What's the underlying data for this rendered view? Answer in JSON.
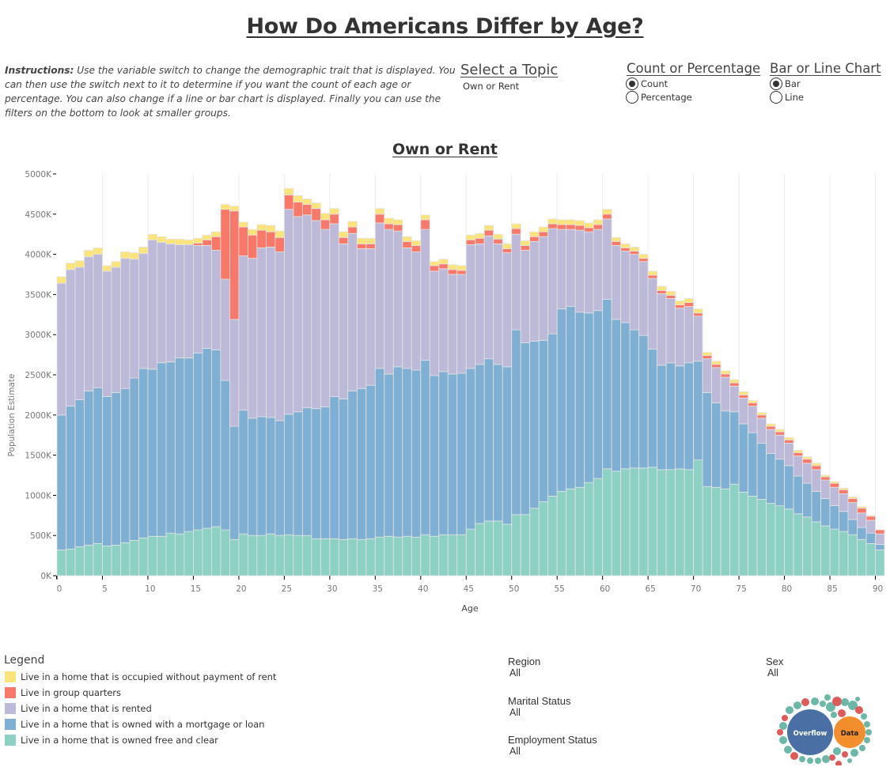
{
  "header": {
    "title": "How Do Americans Differ by Age?",
    "instructions_label": "Instructions:",
    "instructions_text": " Use the variable switch to change the demographic trait that is displayed. You can then use the switch next to it to determine if you want the count of each age or percentage. You can also change if  a line or bar chart is displayed. Finally you can use the filters on the bottom to look at smaller groups."
  },
  "controls": {
    "topic": {
      "title": "Select a Topic",
      "value": "Own or Rent"
    },
    "count_or_percentage": {
      "title": "Count or Percentage",
      "options": [
        {
          "label": "Count",
          "selected": true
        },
        {
          "label": "Percentage",
          "selected": false
        }
      ]
    },
    "bar_or_line": {
      "title": "Bar or Line Chart",
      "options": [
        {
          "label": "Bar",
          "selected": true
        },
        {
          "label": "Line",
          "selected": false
        }
      ]
    }
  },
  "legend": {
    "title": "Legend",
    "items": [
      {
        "label": "Live in a home that is occupied without payment of rent",
        "color": "#FBE47A"
      },
      {
        "label": "Live in group quarters",
        "color": "#F8796A"
      },
      {
        "label": "Live in a home that is rented",
        "color": "#BDB9D9"
      },
      {
        "label": "Live in a home that is owned with a mortgage or loan",
        "color": "#7FAFD2"
      },
      {
        "label": "Live in a home that is owned free and clear",
        "color": "#8DD1C4"
      }
    ]
  },
  "filters": [
    {
      "label": "Region",
      "value": "All"
    },
    {
      "label": "Marital Status",
      "value": "All"
    },
    {
      "label": "Employment Status",
      "value": "All"
    },
    {
      "label": "Sex",
      "value": "All"
    }
  ],
  "logo": {
    "word1": "Overflow",
    "word2": "Data"
  },
  "chart_data": {
    "type": "bar",
    "stacked": true,
    "title": "Own or Rent",
    "xlabel": "Age",
    "ylabel": "Population Estimate",
    "ylim": [
      0,
      5000
    ],
    "y_unit": "K",
    "yticks": [
      "0K",
      "500K",
      "1000K",
      "1500K",
      "2000K",
      "2500K",
      "3000K",
      "3500K",
      "4000K",
      "4500K",
      "5000K"
    ],
    "ytick_values": [
      0,
      500,
      1000,
      1500,
      2000,
      2500,
      3000,
      3500,
      4000,
      4500,
      5000
    ],
    "xticks": [
      0,
      5,
      10,
      15,
      20,
      25,
      30,
      35,
      40,
      45,
      50,
      55,
      60,
      65,
      70,
      75,
      80,
      85,
      90
    ],
    "grid": "vertical at x ticks",
    "legend_position": "bottom-left",
    "categories": [
      0,
      1,
      2,
      3,
      4,
      5,
      6,
      7,
      8,
      9,
      10,
      11,
      12,
      13,
      14,
      15,
      16,
      17,
      18,
      19,
      20,
      21,
      22,
      23,
      24,
      25,
      26,
      27,
      28,
      29,
      30,
      31,
      32,
      33,
      34,
      35,
      36,
      37,
      38,
      39,
      40,
      41,
      42,
      43,
      44,
      45,
      46,
      47,
      48,
      49,
      50,
      51,
      52,
      53,
      54,
      55,
      56,
      57,
      58,
      59,
      60,
      61,
      62,
      63,
      64,
      65,
      66,
      67,
      68,
      69,
      70,
      71,
      72,
      73,
      74,
      75,
      76,
      77,
      78,
      79,
      80,
      81,
      82,
      83,
      84,
      85,
      86,
      87,
      88,
      89,
      90
    ],
    "series": [
      {
        "name": "Live in a home that is owned free and clear",
        "color": "#8DD1C4",
        "values": [
          320,
          330,
          360,
          380,
          400,
          370,
          380,
          410,
          440,
          470,
          490,
          490,
          530,
          520,
          550,
          570,
          590,
          610,
          570,
          450,
          520,
          500,
          500,
          520,
          500,
          510,
          500,
          500,
          460,
          460,
          460,
          450,
          460,
          450,
          460,
          480,
          490,
          480,
          490,
          480,
          510,
          490,
          510,
          510,
          510,
          580,
          650,
          680,
          680,
          640,
          760,
          760,
          840,
          920,
          990,
          1050,
          1080,
          1100,
          1160,
          1210,
          1330,
          1300,
          1330,
          1340,
          1340,
          1350,
          1320,
          1320,
          1330,
          1320,
          1440,
          1110,
          1100,
          1080,
          1140,
          1040,
          990,
          950,
          900,
          870,
          830,
          770,
          730,
          670,
          620,
          580,
          550,
          510,
          450,
          400,
          320
        ]
      },
      {
        "name": "Live in a home that is owned with a mortgage or loan",
        "color": "#7FAFD2",
        "values": [
          1680,
          1780,
          1830,
          1920,
          1940,
          1860,
          1900,
          1920,
          2020,
          2110,
          2080,
          2160,
          2130,
          2190,
          2160,
          2200,
          2240,
          2200,
          1860,
          1410,
          1540,
          1460,
          1480,
          1450,
          1430,
          1500,
          1540,
          1590,
          1620,
          1640,
          1770,
          1750,
          1840,
          1880,
          1910,
          2100,
          2020,
          2120,
          2090,
          2080,
          2170,
          2000,
          2030,
          2000,
          2010,
          2000,
          1980,
          2020,
          1950,
          1960,
          2300,
          2140,
          2080,
          2010,
          2020,
          2270,
          2270,
          2180,
          2110,
          2090,
          2110,
          1890,
          1820,
          1720,
          1650,
          1470,
          1300,
          1330,
          1280,
          1330,
          1230,
          1170,
          1050,
          970,
          900,
          850,
          790,
          700,
          620,
          580,
          540,
          470,
          420,
          380,
          340,
          290,
          250,
          190,
          150,
          130,
          70
        ]
      },
      {
        "name": "Live in a home that is rented",
        "color": "#BDB9D9",
        "values": [
          1640,
          1700,
          1650,
          1670,
          1660,
          1560,
          1560,
          1620,
          1480,
          1430,
          1610,
          1500,
          1470,
          1410,
          1410,
          1340,
          1280,
          1240,
          1260,
          1330,
          1920,
          1990,
          2100,
          2120,
          2100,
          2550,
          2430,
          2400,
          2340,
          2210,
          2150,
          1930,
          1960,
          1740,
          1700,
          1810,
          1800,
          1690,
          1500,
          1470,
          1630,
          1300,
          1280,
          1240,
          1230,
          1540,
          1500,
          1530,
          1500,
          1420,
          1190,
          1150,
          1240,
          1290,
          1310,
          990,
          960,
          1020,
          1010,
          1010,
          1000,
          920,
          890,
          940,
          920,
          880,
          890,
          800,
          720,
          700,
          560,
          420,
          440,
          420,
          320,
          320,
          330,
          310,
          300,
          300,
          280,
          250,
          250,
          270,
          230,
          230,
          220,
          210,
          180,
          160,
          130
        ]
      },
      {
        "name": "Live in group quarters",
        "color": "#F8796A",
        "values": [
          0,
          0,
          0,
          0,
          0,
          0,
          0,
          0,
          0,
          0,
          0,
          0,
          0,
          0,
          0,
          30,
          70,
          170,
          870,
          1350,
          360,
          290,
          220,
          190,
          180,
          180,
          180,
          130,
          150,
          120,
          120,
          80,
          80,
          60,
          60,
          110,
          70,
          80,
          80,
          80,
          120,
          70,
          60,
          60,
          50,
          60,
          70,
          70,
          60,
          50,
          70,
          60,
          60,
          60,
          60,
          60,
          60,
          60,
          50,
          60,
          60,
          50,
          40,
          40,
          40,
          40,
          40,
          40,
          40,
          50,
          40,
          40,
          40,
          40,
          40,
          40,
          40,
          40,
          40,
          40,
          40,
          40,
          50,
          50,
          40,
          50,
          50,
          50,
          60,
          50,
          50
        ]
      },
      {
        "name": "Live in a home that is occupied without payment of rent",
        "color": "#FBE47A",
        "values": [
          80,
          80,
          80,
          80,
          80,
          70,
          70,
          80,
          80,
          80,
          70,
          70,
          60,
          70,
          60,
          60,
          60,
          60,
          60,
          60,
          60,
          70,
          70,
          80,
          80,
          80,
          80,
          70,
          70,
          80,
          70,
          70,
          70,
          70,
          70,
          70,
          70,
          60,
          60,
          60,
          60,
          50,
          60,
          60,
          60,
          60,
          60,
          60,
          60,
          60,
          60,
          60,
          60,
          60,
          60,
          60,
          60,
          60,
          60,
          60,
          60,
          50,
          50,
          50,
          50,
          50,
          50,
          50,
          50,
          50,
          50,
          40,
          40,
          40,
          40,
          40,
          30,
          30,
          30,
          30,
          30,
          30,
          30,
          30,
          20,
          20,
          20,
          20,
          20,
          10,
          0
        ]
      }
    ]
  }
}
